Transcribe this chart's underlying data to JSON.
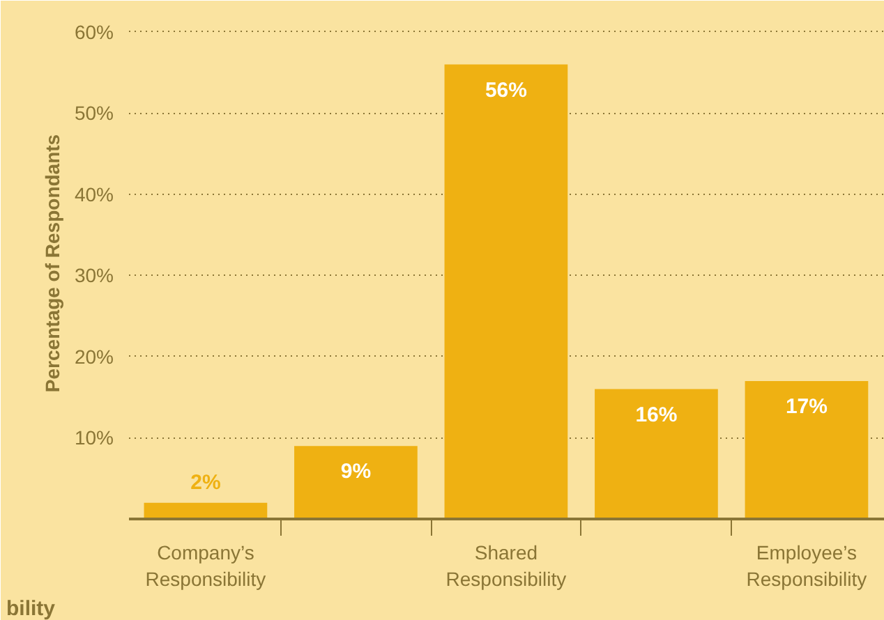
{
  "chart_data": {
    "type": "bar",
    "ylabel": "Percentage of Respondants",
    "categories": [
      "Company’s Responsibility",
      null,
      "Shared Responsibility",
      null,
      "Employee’s Responsibility"
    ],
    "values": [
      2,
      9,
      56,
      16,
      17
    ],
    "value_labels": [
      "2%",
      "9%",
      "56%",
      "16%",
      "17%"
    ],
    "color": "#efb112",
    "ylim": [
      0,
      63
    ],
    "yticks": [
      {
        "value": 10,
        "label": "10%"
      },
      {
        "value": 20,
        "label": "20%"
      },
      {
        "value": 30,
        "label": "30%"
      },
      {
        "value": 40,
        "label": "40%"
      },
      {
        "value": 50,
        "label": "50%"
      },
      {
        "value": 60,
        "label": "60%"
      }
    ],
    "grid": "y",
    "annotations": [
      "bility"
    ]
  }
}
